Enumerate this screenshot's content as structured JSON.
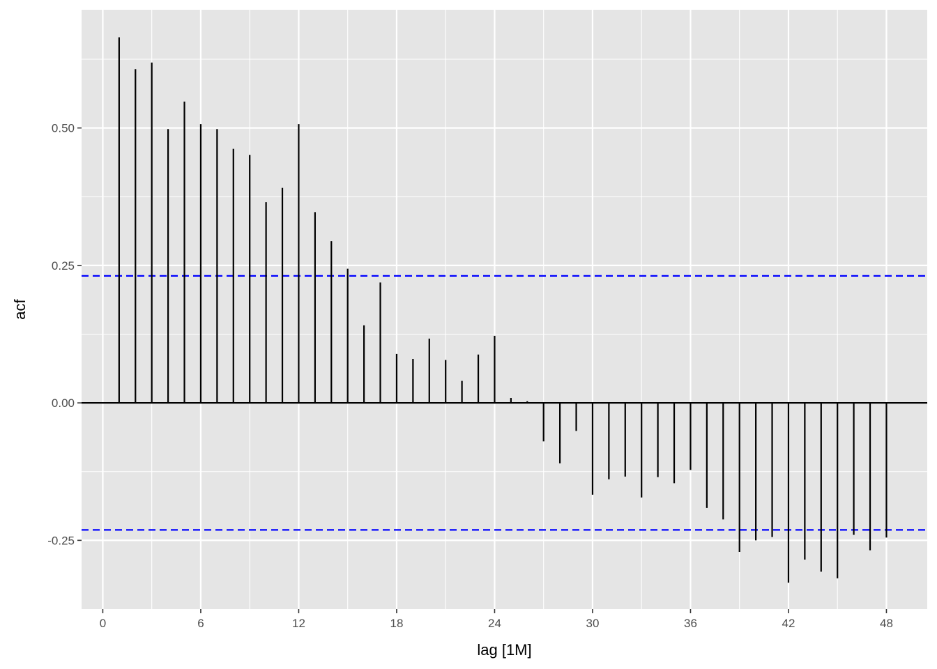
{
  "chart_data": {
    "type": "bar",
    "subtype": "acf-correlogram",
    "title": "",
    "xlabel": "lag [1M]",
    "ylabel": "acf",
    "xlim": [
      -1.3,
      50.5
    ],
    "ylim": [
      -0.375,
      0.715
    ],
    "xticks": [
      0,
      6,
      12,
      18,
      24,
      30,
      36,
      42,
      48
    ],
    "yticks": [
      -0.25,
      0.0,
      0.25,
      0.5
    ],
    "ytick_labels": [
      "-0.25",
      "0.00",
      "0.25",
      "0.50"
    ],
    "confidence_bound": 0.231,
    "grid": true,
    "lags": [
      1,
      2,
      3,
      4,
      5,
      6,
      7,
      8,
      9,
      10,
      11,
      12,
      13,
      14,
      15,
      16,
      17,
      18,
      19,
      20,
      21,
      22,
      23,
      24,
      25,
      26,
      27,
      28,
      29,
      30,
      31,
      32,
      33,
      34,
      35,
      36,
      37,
      38,
      39,
      40,
      41,
      42,
      43,
      44,
      45,
      46,
      47,
      48
    ],
    "values": [
      0.665,
      0.607,
      0.619,
      0.498,
      0.548,
      0.507,
      0.498,
      0.462,
      0.451,
      0.365,
      0.391,
      0.507,
      0.347,
      0.294,
      0.244,
      0.141,
      0.219,
      0.089,
      0.08,
      0.117,
      0.078,
      0.04,
      0.088,
      0.122,
      0.009,
      0.003,
      -0.07,
      -0.11,
      -0.051,
      -0.167,
      -0.139,
      -0.134,
      -0.172,
      -0.135,
      -0.146,
      -0.122,
      -0.191,
      -0.212,
      -0.271,
      -0.25,
      -0.244,
      -0.327,
      -0.285,
      -0.307,
      -0.319,
      -0.24,
      -0.268,
      -0.245
    ],
    "colors": {
      "panel": "#e5e5e5",
      "grid": "#ffffff",
      "bars": "#000000",
      "bounds": "#0000ff"
    }
  }
}
